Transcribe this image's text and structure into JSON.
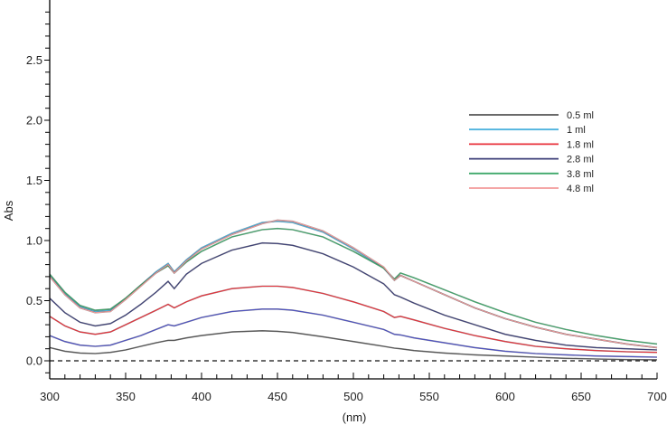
{
  "chart_data": {
    "type": "line",
    "title": "",
    "xlabel": "(nm)",
    "ylabel": "Abs",
    "xlim": [
      300,
      700
    ],
    "ylim": [
      -0.15,
      3.0
    ],
    "x_ticks": [
      300,
      350,
      400,
      450,
      500,
      550,
      600,
      650,
      700
    ],
    "y_ticks": [
      0.0,
      0.5,
      1.0,
      1.5,
      2.0,
      2.5
    ],
    "x_tick_labels": [
      "300",
      "350",
      "400",
      "450",
      "500",
      "550",
      "600",
      "650",
      "700"
    ],
    "y_tick_labels": [
      "0.0",
      "0.5",
      "1.0",
      "1.5",
      "2.0",
      "2.5"
    ],
    "grid": false,
    "legend_position": "upper right",
    "baseline": {
      "y": 0.0,
      "style": "dashed",
      "color": "#000000"
    },
    "x": [
      300,
      310,
      320,
      330,
      340,
      350,
      360,
      370,
      378,
      382,
      390,
      400,
      420,
      440,
      450,
      460,
      480,
      500,
      520,
      527,
      531,
      540,
      560,
      580,
      600,
      620,
      640,
      660,
      680,
      700
    ],
    "series": [
      {
        "name": "0.5 ml",
        "color": "#555555",
        "values": [
          0.11,
          0.08,
          0.065,
          0.06,
          0.07,
          0.09,
          0.12,
          0.15,
          0.17,
          0.17,
          0.19,
          0.21,
          0.24,
          0.25,
          0.245,
          0.235,
          0.2,
          0.16,
          0.12,
          0.105,
          0.1,
          0.085,
          0.065,
          0.05,
          0.04,
          0.03,
          0.02,
          0.015,
          0.01,
          0.008
        ]
      },
      {
        "name": "1 ml",
        "color": "#4fb3de",
        "values": [
          0.71,
          0.56,
          0.45,
          0.41,
          0.42,
          0.52,
          0.63,
          0.74,
          0.81,
          0.74,
          0.84,
          0.94,
          1.06,
          1.15,
          1.16,
          1.15,
          1.07,
          0.93,
          0.77,
          0.67,
          0.71,
          0.66,
          0.55,
          0.44,
          0.35,
          0.28,
          0.22,
          0.18,
          0.14,
          0.11
        ]
      },
      {
        "name": "1.8 ml",
        "color": "#e8303a",
        "values": [
          0.37,
          0.29,
          0.24,
          0.22,
          0.24,
          0.3,
          0.36,
          0.42,
          0.47,
          0.44,
          0.49,
          0.54,
          0.6,
          0.62,
          0.62,
          0.61,
          0.56,
          0.49,
          0.41,
          0.36,
          0.37,
          0.34,
          0.27,
          0.21,
          0.16,
          0.12,
          0.1,
          0.085,
          0.075,
          0.07
        ]
      },
      {
        "name": "2.8 ml",
        "color": "#3c3f78",
        "values": [
          0.52,
          0.4,
          0.32,
          0.29,
          0.31,
          0.38,
          0.47,
          0.57,
          0.66,
          0.6,
          0.72,
          0.81,
          0.92,
          0.98,
          0.975,
          0.96,
          0.89,
          0.78,
          0.64,
          0.55,
          0.53,
          0.48,
          0.38,
          0.3,
          0.22,
          0.17,
          0.13,
          0.11,
          0.1,
          0.09
        ]
      },
      {
        "name": "3.8 ml",
        "color": "#3ea86a",
        "values": [
          0.72,
          0.57,
          0.46,
          0.42,
          0.43,
          0.52,
          0.63,
          0.73,
          0.79,
          0.73,
          0.82,
          0.91,
          1.03,
          1.09,
          1.1,
          1.09,
          1.03,
          0.91,
          0.77,
          0.68,
          0.73,
          0.69,
          0.59,
          0.49,
          0.4,
          0.32,
          0.26,
          0.21,
          0.17,
          0.14
        ]
      },
      {
        "name": "4.8 ml",
        "color": "#f39a9a",
        "values": [
          0.7,
          0.55,
          0.44,
          0.4,
          0.41,
          0.51,
          0.62,
          0.73,
          0.8,
          0.73,
          0.83,
          0.93,
          1.05,
          1.14,
          1.17,
          1.16,
          1.08,
          0.94,
          0.78,
          0.67,
          0.71,
          0.66,
          0.55,
          0.44,
          0.35,
          0.28,
          0.22,
          0.18,
          0.14,
          0.11
        ]
      },
      {
        "name": "2.8 ml (blue trace)",
        "color": "#4b4fc4",
        "legend": false,
        "values": [
          0.21,
          0.16,
          0.13,
          0.12,
          0.13,
          0.17,
          0.21,
          0.26,
          0.3,
          0.29,
          0.32,
          0.36,
          0.41,
          0.43,
          0.43,
          0.42,
          0.38,
          0.32,
          0.26,
          0.22,
          0.215,
          0.19,
          0.15,
          0.11,
          0.08,
          0.06,
          0.05,
          0.04,
          0.035,
          0.03
        ]
      }
    ],
    "legend_entries": [
      "0.5 ml",
      "1 ml",
      "1.8 ml",
      "2.8 ml",
      "3.8 ml",
      "4.8 ml"
    ]
  },
  "plot": {
    "x_axis_title": "(nm)",
    "y_axis_title": "Abs"
  },
  "legend": {
    "items": [
      {
        "label": "0.5 ml",
        "color": "#555555"
      },
      {
        "label": "1 ml",
        "color": "#4fb3de"
      },
      {
        "label": "1.8 ml",
        "color": "#e8303a"
      },
      {
        "label": "2.8 ml",
        "color": "#3c3f78"
      },
      {
        "label": "3.8 ml",
        "color": "#3ea86a"
      },
      {
        "label": "4.8 ml",
        "color": "#f39a9a"
      }
    ]
  }
}
